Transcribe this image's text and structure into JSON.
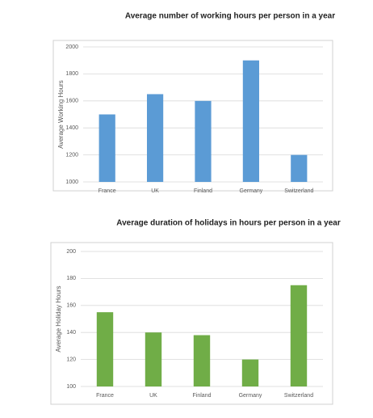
{
  "chart_data": [
    {
      "type": "bar",
      "title": "Average number of working hours per person in a year",
      "y_label": "Average Working Hours",
      "categories": [
        "France",
        "UK",
        "Finland",
        "Germany",
        "Switzerland"
      ],
      "values": [
        1500,
        1650,
        1600,
        1900,
        1200
      ],
      "color": "#5b9bd5",
      "ylim": [
        1000,
        2000
      ],
      "yticks": [
        1000,
        1200,
        1400,
        1600,
        1800,
        2000
      ],
      "grid": true
    },
    {
      "type": "bar",
      "title": "Average duration of holidays in hours per person in a year",
      "y_label": "Average Holiday Hours",
      "categories": [
        "France",
        "UK",
        "Finland",
        "Germany",
        "Switzerland"
      ],
      "values": [
        155,
        140,
        138,
        120,
        175
      ],
      "color": "#70ad47",
      "ylim": [
        100,
        200
      ],
      "yticks": [
        100,
        120,
        140,
        160,
        180,
        200
      ],
      "grid": true
    }
  ]
}
